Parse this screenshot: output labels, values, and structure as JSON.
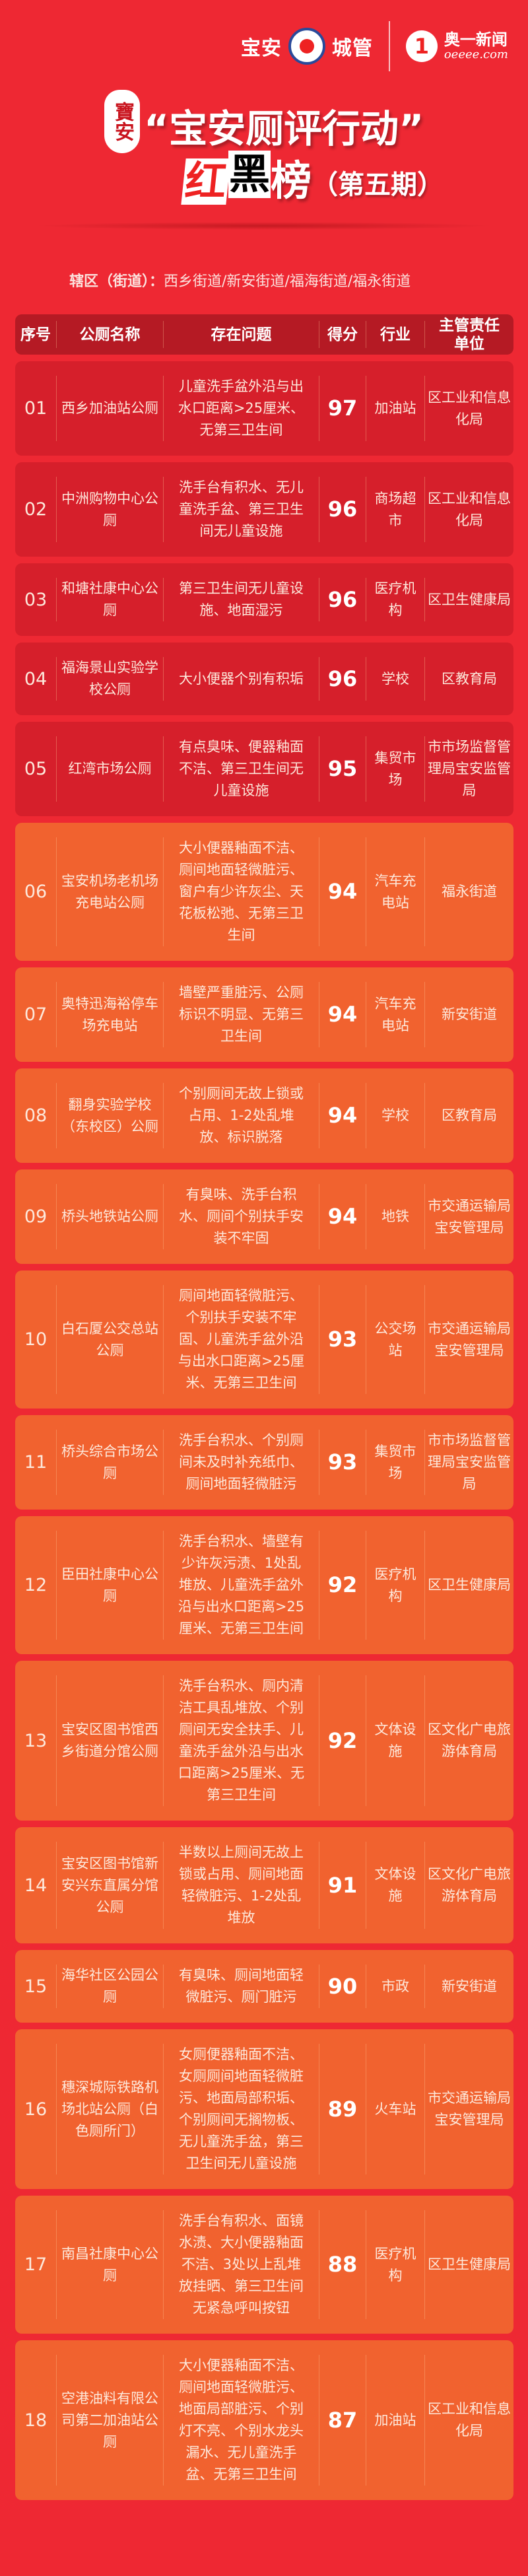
{
  "brand": {
    "baoan": "宝安",
    "chengguan": "城管",
    "ao_icon": "1",
    "aoyi": "奥一新闻",
    "oeeee": "oeeee.com"
  },
  "seal": {
    "text": "寶安"
  },
  "title": {
    "line1": "“宝安厕评行动”",
    "hong": "红",
    "hei": "黑",
    "bang": "榜",
    "issue": "（第五期）"
  },
  "district": {
    "label": "辖区（街道）：",
    "value": "西乡街道/新安街道/福海街道/福永街道"
  },
  "colors": {
    "background": "#ee2833",
    "top_rows": "#d61f2b",
    "other_rows": "#f1622f",
    "header": "#b51a24"
  },
  "table": {
    "headers": [
      "序号",
      "公厕名称",
      "存在问题",
      "得分",
      "行业",
      "主管责任单位"
    ],
    "rows": [
      {
        "no": "01",
        "name": "西乡加油站公厕",
        "problem": "儿童洗手盆外沿与出水口距离>25厘米、无第三卫生间",
        "score": "97",
        "industry": "加油站",
        "unit": "区工业和信息化局"
      },
      {
        "no": "02",
        "name": "中洲购物中心公厕",
        "problem": "洗手台有积水、无儿童洗手盆、第三卫生间无儿童设施",
        "score": "96",
        "industry": "商场超市",
        "unit": "区工业和信息化局"
      },
      {
        "no": "03",
        "name": "和塘社康中心公厕",
        "problem": "第三卫生间无儿童设施、地面湿污",
        "score": "96",
        "industry": "医疗机构",
        "unit": "区卫生健康局"
      },
      {
        "no": "04",
        "name": "福海景山实验学校公厕",
        "problem": "大小便器个别有积垢",
        "score": "96",
        "industry": "学校",
        "unit": "区教育局"
      },
      {
        "no": "05",
        "name": "红湾市场公厕",
        "problem": "有点臭味、便器釉面不洁、第三卫生间无儿童设施",
        "score": "95",
        "industry": "集贸市场",
        "unit": "市市场监督管理局宝安监管局"
      },
      {
        "no": "06",
        "name": "宝安机场老机场充电站公厕",
        "problem": "大小便器釉面不洁、厕间地面轻微脏污、窗户有少许灰尘、天花板松弛、无第三卫生间",
        "score": "94",
        "industry": "汽车充电站",
        "unit": "福永街道"
      },
      {
        "no": "07",
        "name": "奥特迅海裕停车场充电站",
        "problem": "墙壁严重脏污、公厕标识不明显、无第三卫生间",
        "score": "94",
        "industry": "汽车充电站",
        "unit": "新安街道"
      },
      {
        "no": "08",
        "name": "翻身实验学校（东校区）公厕",
        "problem": "个别厕间无故上锁或占用、1-2处乱堆放、标识脱落",
        "score": "94",
        "industry": "学校",
        "unit": "区教育局"
      },
      {
        "no": "09",
        "name": "桥头地铁站公厕",
        "problem": "有臭味、洗手台积水、厕间个别扶手安装不牢固",
        "score": "94",
        "industry": "地铁",
        "unit": "市交通运输局宝安管理局"
      },
      {
        "no": "10",
        "name": "白石厦公交总站公厕",
        "problem": "厕间地面轻微脏污、个别扶手安装不牢固、儿童洗手盆外沿与出水口距离>25厘米、无第三卫生间",
        "score": "93",
        "industry": "公交场站",
        "unit": "市交通运输局宝安管理局"
      },
      {
        "no": "11",
        "name": "桥头综合市场公厕",
        "problem": "洗手台积水、个别厕间未及时补充纸巾、厕间地面轻微脏污",
        "score": "93",
        "industry": "集贸市场",
        "unit": "市市场监督管理局宝安监管局"
      },
      {
        "no": "12",
        "name": "臣田社康中心公厕",
        "problem": "洗手台积水、墙壁有少许灰污渍、1处乱堆放、儿童洗手盆外沿与出水口距离>25厘米、无第三卫生间",
        "score": "92",
        "industry": "医疗机构",
        "unit": "区卫生健康局"
      },
      {
        "no": "13",
        "name": "宝安区图书馆西乡街道分馆公厕",
        "problem": "洗手台积水、厕内清洁工具乱堆放、个别厕间无安全扶手、儿童洗手盆外沿与出水口距离>25厘米、无第三卫生间",
        "score": "92",
        "industry": "文体设施",
        "unit": "区文化广电旅游体育局"
      },
      {
        "no": "14",
        "name": "宝安区图书馆新安兴东直属分馆公厕",
        "problem": "半数以上厕间无故上锁或占用、厕间地面轻微脏污、1-2处乱堆放",
        "score": "91",
        "industry": "文体设施",
        "unit": "区文化广电旅游体育局"
      },
      {
        "no": "15",
        "name": "海华社区公园公厕",
        "problem": "有臭味、厕间地面轻微脏污、厕门脏污",
        "score": "90",
        "industry": "市政",
        "unit": "新安街道"
      },
      {
        "no": "16",
        "name": "穗深城际铁路机场北站公厕（白色厕所门）",
        "problem": "女厕便器釉面不洁、女厕厕间地面轻微脏污、地面局部积垢、个别厕间无搁物板、无儿童洗手盆，第三卫生间无儿童设施",
        "score": "89",
        "industry": "火车站",
        "unit": "市交通运输局宝安管理局"
      },
      {
        "no": "17",
        "name": "南昌社康中心公厕",
        "problem": "洗手台有积水、面镜水渍、大小便器釉面不洁、3处以上乱堆放挂晒、第三卫生间无紧急呼叫按钮",
        "score": "88",
        "industry": "医疗机构",
        "unit": "区卫生健康局"
      },
      {
        "no": "18",
        "name": "空港油料有限公司第二加油站公厕",
        "problem": "大小便器釉面不洁、厕间地面轻微脏污、地面局部脏污、个别灯不亮、个别水龙头漏水、无儿童洗手盆、无第三卫生间",
        "score": "87",
        "industry": "加油站",
        "unit": "区工业和信息化局"
      }
    ]
  }
}
